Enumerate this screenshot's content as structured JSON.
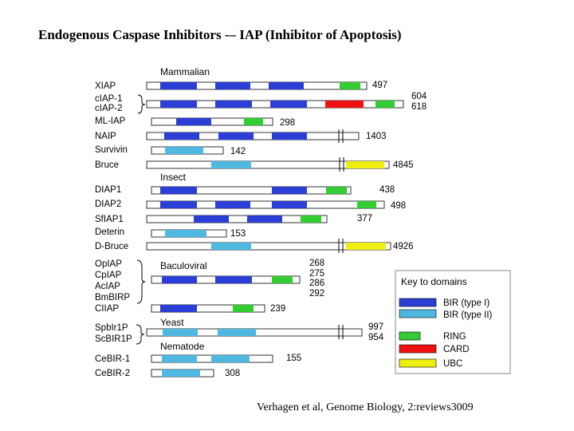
{
  "title": "Endogenous Caspase Inhibitors -– IAP (Inhibitor of Apoptosis)",
  "citation": "Verhagen et al, Genome Biology, 2:reviews3009",
  "colors": {
    "bir1": "#2b3ed6",
    "bir2": "#4fb8e0",
    "ring": "#33cc33",
    "card": "#ee1111",
    "ubc": "#eeee11"
  },
  "groups": {
    "mammalian": "Mammalian",
    "insect": "Insect",
    "baculoviral": "Baculoviral",
    "yeast": "Yeast",
    "nematode": "Nematode"
  },
  "proteins": [
    {
      "name": "XIAP",
      "length": "497"
    },
    {
      "name": "cIAP-1",
      "length": "604"
    },
    {
      "name": "cIAP-2",
      "length": "618"
    },
    {
      "name": "ML-IAP",
      "length": "298"
    },
    {
      "name": "NAIP",
      "length": "1403"
    },
    {
      "name": "Survivin",
      "length": "142"
    },
    {
      "name": "Bruce",
      "length": "4845"
    },
    {
      "name": "DIAP1",
      "length": "438"
    },
    {
      "name": "DIAP2",
      "length": "498"
    },
    {
      "name": "SfIAP1",
      "length": "377"
    },
    {
      "name": "Deterin",
      "length": "153"
    },
    {
      "name": "D-Bruce",
      "length": "4926"
    },
    {
      "name": "OpIAP",
      "length": "268"
    },
    {
      "name": "CpIAP",
      "length": "275"
    },
    {
      "name": "AcIAP",
      "length": "286"
    },
    {
      "name": "BmBIRP",
      "length": "292"
    },
    {
      "name": "CIIAP",
      "length": "239"
    },
    {
      "name": "SpbIr1P",
      "length": "997"
    },
    {
      "name": "ScBIR1P",
      "length": "954"
    },
    {
      "name": "CeBIR-1",
      "length": "155"
    },
    {
      "name": "CeBIR-2",
      "length": "308"
    }
  ],
  "key": {
    "title": "Key to domains",
    "items": [
      {
        "label": "BIR (type I)",
        "color": "#2b3ed6"
      },
      {
        "label": "BIR (type II)",
        "color": "#4fb8e0"
      },
      {
        "label": "RING",
        "color": "#33cc33"
      },
      {
        "label": "CARD",
        "color": "#ee1111"
      },
      {
        "label": "UBC",
        "color": "#eeee11"
      }
    ]
  }
}
